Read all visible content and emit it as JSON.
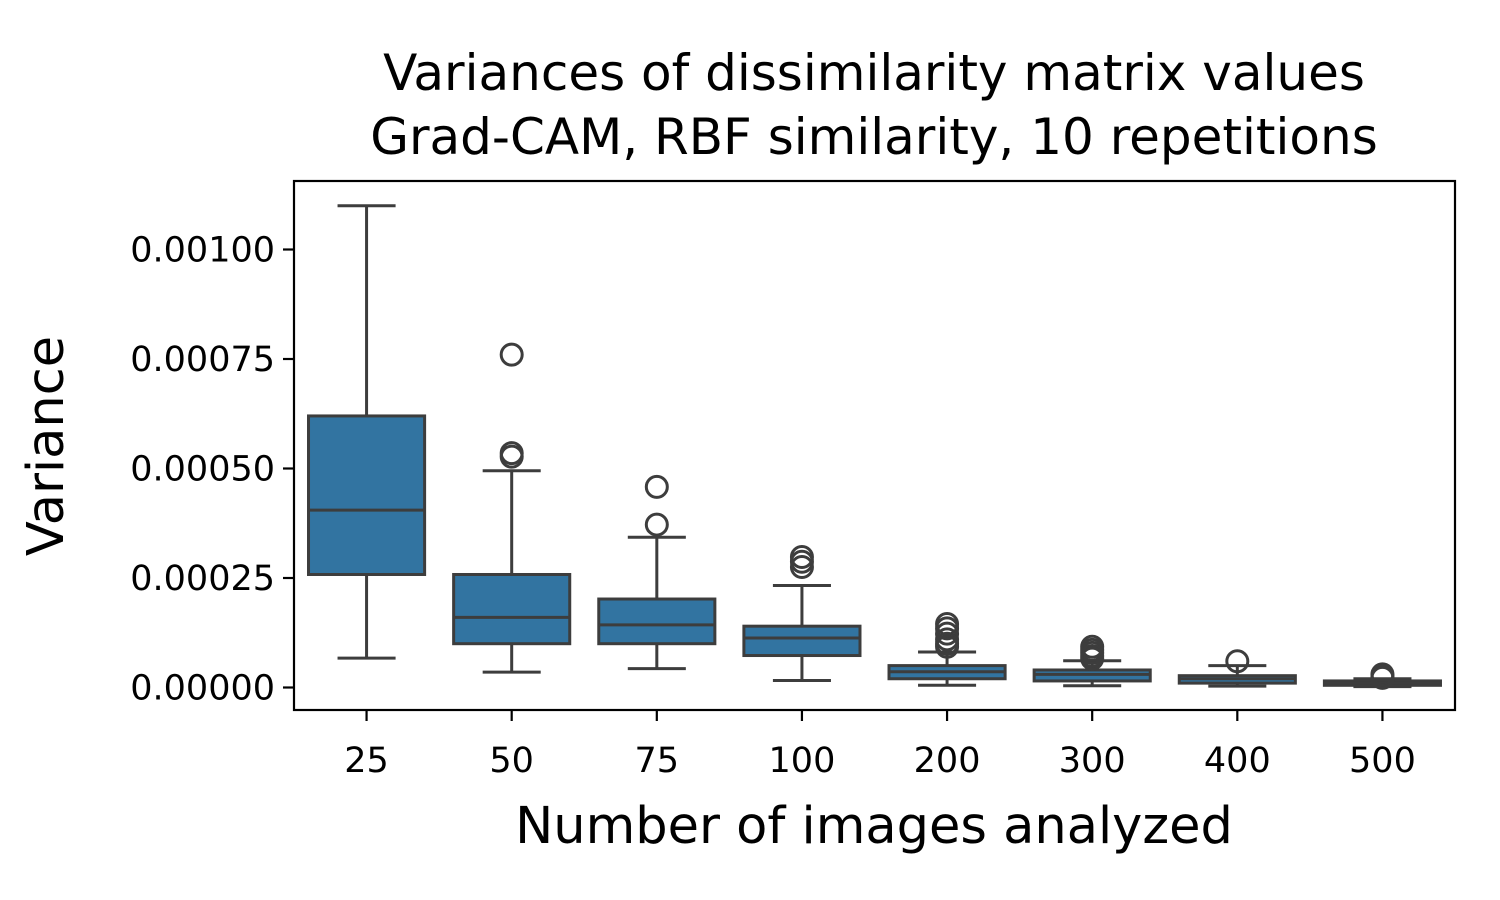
{
  "chart_data": {
    "type": "box",
    "title": "Variances of dissimilarity matrix values\nGrad-CAM, RBF similarity, 10 repetitions",
    "title_lines": [
      "Variances of dissimilarity matrix values",
      "Grad-CAM, RBF similarity, 10 repetitions"
    ],
    "xlabel": "Number of images analyzed",
    "ylabel": "Variance",
    "categories": [
      "25",
      "50",
      "75",
      "100",
      "200",
      "300",
      "400",
      "500"
    ],
    "ylim": [
      -5e-05,
      0.00116
    ],
    "yticks": [
      0.0,
      0.00025,
      0.0005,
      0.00075,
      0.001
    ],
    "ytick_labels": [
      "0.00000",
      "0.00025",
      "0.00050",
      "0.00075",
      "0.00100"
    ],
    "grid": false,
    "box_color": "#3274a1",
    "line_color": "#3d3d3d",
    "boxes": [
      {
        "label": "25",
        "whislo": 6.7e-05,
        "q1": 0.000258,
        "med": 0.000405,
        "q3": 0.00062,
        "whishi": 0.0011,
        "fliers": []
      },
      {
        "label": "50",
        "whislo": 3.5e-05,
        "q1": 0.0001,
        "med": 0.00016,
        "q3": 0.000258,
        "whishi": 0.000495,
        "fliers": [
          0.00076,
          0.000535,
          0.000527
        ]
      },
      {
        "label": "75",
        "whislo": 4.3e-05,
        "q1": 0.0001,
        "med": 0.000143,
        "q3": 0.000202,
        "whishi": 0.000343,
        "fliers": [
          0.000458,
          0.000372
        ]
      },
      {
        "label": "100",
        "whislo": 1.6e-05,
        "q1": 7.3e-05,
        "med": 0.000113,
        "q3": 0.00014,
        "whishi": 0.000233,
        "fliers": [
          0.000298,
          0.000287,
          0.000275
        ]
      },
      {
        "label": "200",
        "whislo": 5e-06,
        "q1": 2e-05,
        "med": 3.6e-05,
        "q3": 5e-05,
        "whishi": 8.1e-05,
        "fliers": [
          0.000145,
          0.000135,
          0.000123,
          0.00011,
          0.0001,
          9.3e-05
        ]
      },
      {
        "label": "300",
        "whislo": 4e-06,
        "q1": 1.5e-05,
        "med": 3e-05,
        "q3": 4e-05,
        "whishi": 6.1e-05,
        "fliers": [
          9.3e-05,
          8.6e-05,
          7.9e-05,
          7.2e-05,
          6.6e-05
        ]
      },
      {
        "label": "400",
        "whislo": 3e-06,
        "q1": 1e-05,
        "med": 2e-05,
        "q3": 2.7e-05,
        "whishi": 5e-05,
        "fliers": [
          6e-05
        ]
      },
      {
        "label": "500",
        "whislo": 2e-06,
        "q1": 5e-06,
        "med": 1e-05,
        "q3": 1.5e-05,
        "whishi": 2e-05,
        "fliers": [
          3e-05,
          2.6e-05,
          2.2e-05
        ]
      }
    ]
  }
}
